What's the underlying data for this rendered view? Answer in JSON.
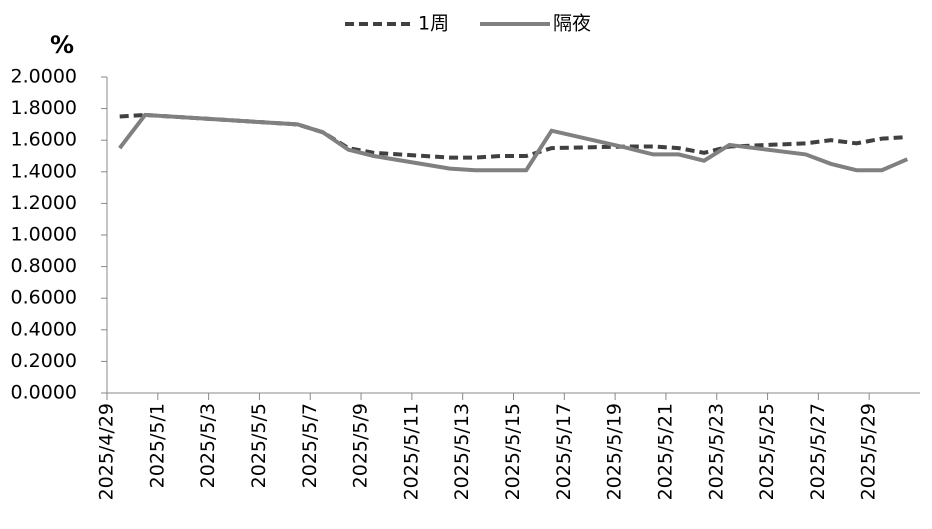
{
  "chart_data": {
    "type": "line",
    "y_label": "%",
    "x": [
      "2025/4/29",
      "2025/4/30",
      "2025/5/6",
      "2025/5/7",
      "2025/5/8",
      "2025/5/9",
      "2025/5/12",
      "2025/5/13",
      "2025/5/14",
      "2025/5/15",
      "2025/5/16",
      "2025/5/19",
      "2025/5/20",
      "2025/5/21",
      "2025/5/22",
      "2025/5/23",
      "2025/5/26",
      "2025/5/27",
      "2025/5/28",
      "2025/5/29",
      "2025/5/30"
    ],
    "series": [
      {
        "name": "1周",
        "color": "#404040",
        "dash": true,
        "values": [
          1.75,
          1.76,
          1.7,
          1.65,
          1.55,
          1.52,
          1.49,
          1.49,
          1.5,
          1.5,
          1.55,
          1.56,
          1.56,
          1.55,
          1.52,
          1.56,
          1.58,
          1.6,
          1.58,
          1.61,
          1.62
        ]
      },
      {
        "name": "隔夜",
        "color": "#808080",
        "dash": false,
        "values": [
          1.55,
          1.76,
          1.7,
          1.65,
          1.54,
          1.5,
          1.42,
          1.41,
          1.41,
          1.41,
          1.66,
          1.55,
          1.51,
          1.51,
          1.47,
          1.57,
          1.51,
          1.45,
          1.41,
          1.41,
          1.48
        ]
      }
    ],
    "xlim": [
      "2025/4/29",
      "2025/5/31"
    ],
    "xticks": [
      "2025/4/29",
      "2025/5/1",
      "2025/5/3",
      "2025/5/5",
      "2025/5/7",
      "2025/5/9",
      "2025/5/11",
      "2025/5/13",
      "2025/5/15",
      "2025/5/17",
      "2025/5/19",
      "2025/5/21",
      "2025/5/23",
      "2025/5/25",
      "2025/5/27",
      "2025/5/29"
    ],
    "ylim": [
      0,
      2
    ],
    "yticks": [
      {
        "value": 0,
        "label": "0.0000"
      },
      {
        "value": 0.2,
        "label": "0.2000"
      },
      {
        "value": 0.4,
        "label": "0.4000"
      },
      {
        "value": 0.6,
        "label": "0.6000"
      },
      {
        "value": 0.8,
        "label": "0.8000"
      },
      {
        "value": 1,
        "label": "1.0000"
      },
      {
        "value": 1.2,
        "label": "1.2000"
      },
      {
        "value": 1.4,
        "label": "1.4000"
      },
      {
        "value": 1.6,
        "label": "1.6000"
      },
      {
        "value": 1.8,
        "label": "1.8000"
      },
      {
        "value": 2,
        "label": "2.0000"
      }
    ],
    "legend": "top"
  }
}
